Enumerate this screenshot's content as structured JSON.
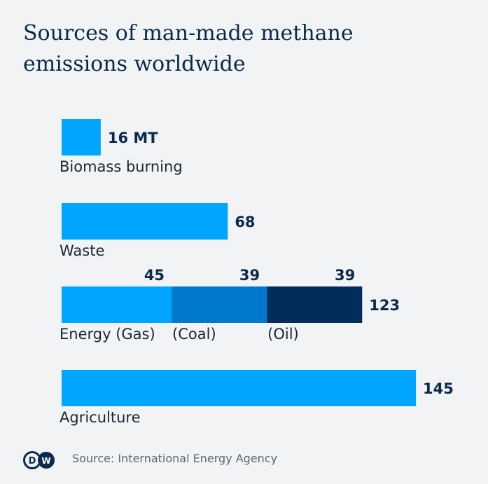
{
  "title": "Sources of man-made methane emissions worldwide",
  "source": "Source: International Energy Agency",
  "logo_text": "DW",
  "colors": {
    "primary": "#00a5ff",
    "coal": "#0079cc",
    "oil": "#002d5a",
    "background": "#f1f3f5"
  },
  "chart_data": {
    "type": "bar",
    "orientation": "horizontal",
    "stacked": true,
    "unit": "MT",
    "title": "Sources of man-made methane emissions worldwide",
    "categories": [
      {
        "label": "Biomass burning",
        "total_label": "16 MT",
        "segments": [
          {
            "value": 16,
            "color": "#00a5ff"
          }
        ]
      },
      {
        "label": "Waste",
        "total_label": "68",
        "segments": [
          {
            "value": 68,
            "color": "#00a5ff"
          }
        ]
      },
      {
        "label": "Energy (Gas)",
        "total_label": "123",
        "segments": [
          {
            "name": "(Gas)",
            "value": 45,
            "value_label": "45",
            "color": "#00a5ff"
          },
          {
            "name": "(Coal)",
            "value": 39,
            "value_label": "39",
            "color": "#0079cc"
          },
          {
            "name": "(Oil)",
            "value": 39,
            "value_label": "39",
            "color": "#002d5a"
          }
        ]
      },
      {
        "label": "Agriculture",
        "total_label": "145",
        "segments": [
          {
            "value": 145,
            "color": "#00a5ff"
          }
        ]
      }
    ],
    "grid": false,
    "legend": "none"
  }
}
